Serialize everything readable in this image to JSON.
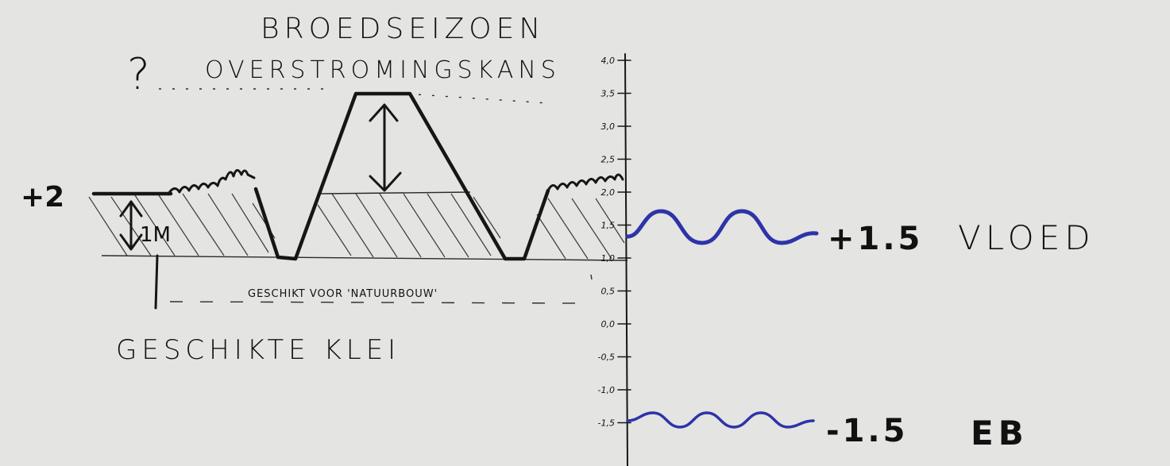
{
  "header": {
    "title_line1": "BROEDSEIZOEN",
    "title_line2": "OVERSTROMINGSKANS",
    "question_mark": "?"
  },
  "left_labels": {
    "plus_two": "+2",
    "one_meter": "1M",
    "suitable_clay": "GESCHIKTE KLEI",
    "nature_building": "GESCHIKT VOOR 'NATUURBOUW'"
  },
  "scale": {
    "ticks": [
      "4,0",
      "3,5",
      "3,0",
      "2,5",
      "2,0",
      "1,5",
      "1,0",
      "0,5",
      "0,0",
      "-0,5",
      "-1,0",
      "-1,5"
    ]
  },
  "tides": {
    "high_value": "+1.5",
    "high_label": "VLOED",
    "low_value": "-1.5",
    "low_label": "EB",
    "color": "#2e33a8"
  },
  "colors": {
    "ink": "#161616",
    "board": "#e4e4e2"
  }
}
